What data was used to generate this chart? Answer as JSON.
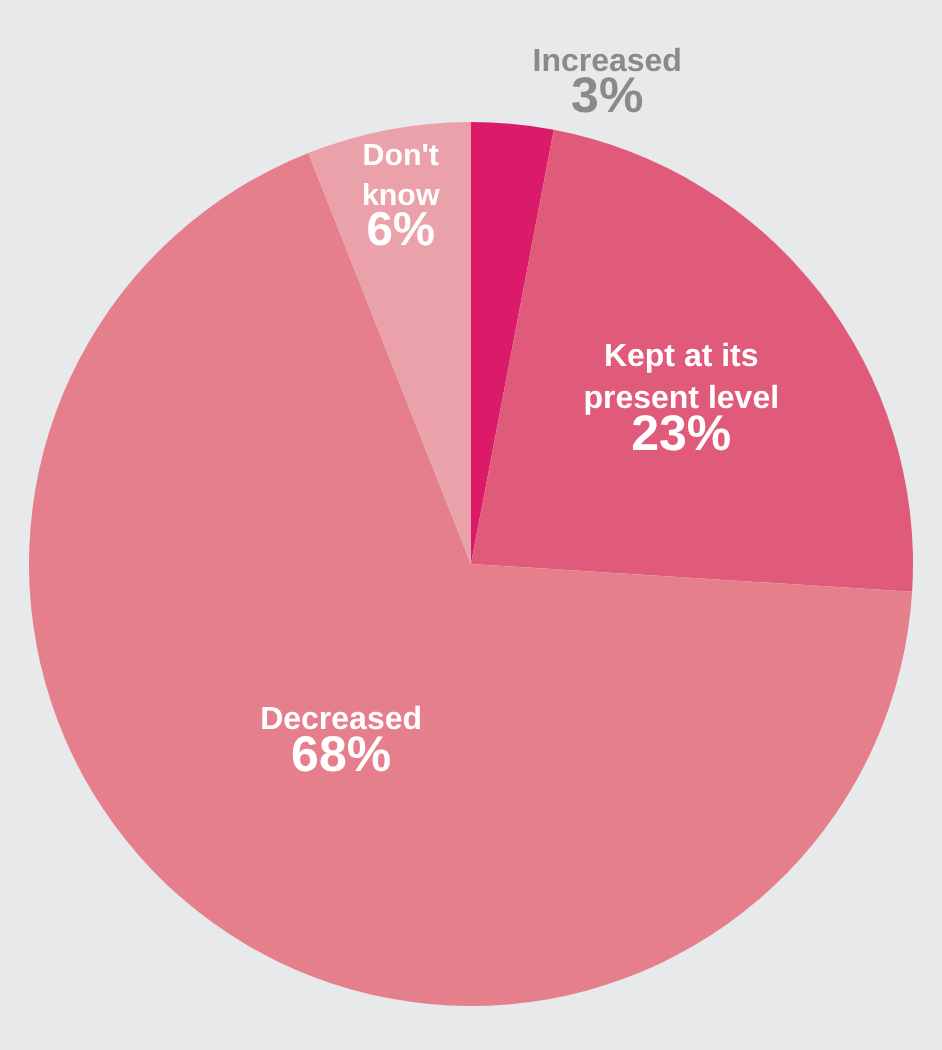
{
  "chart_data": {
    "type": "pie",
    "categories": [
      "Increased",
      "Kept at its present level",
      "Decreased",
      "Don't know"
    ],
    "values": [
      3,
      23,
      68,
      6
    ],
    "value_labels": [
      "3%",
      "23%",
      "68%",
      "6%"
    ],
    "colors": [
      "#dc1a6a",
      "#e05a7a",
      "#e67f8c",
      "#eaa1aa"
    ],
    "legend": false
  }
}
